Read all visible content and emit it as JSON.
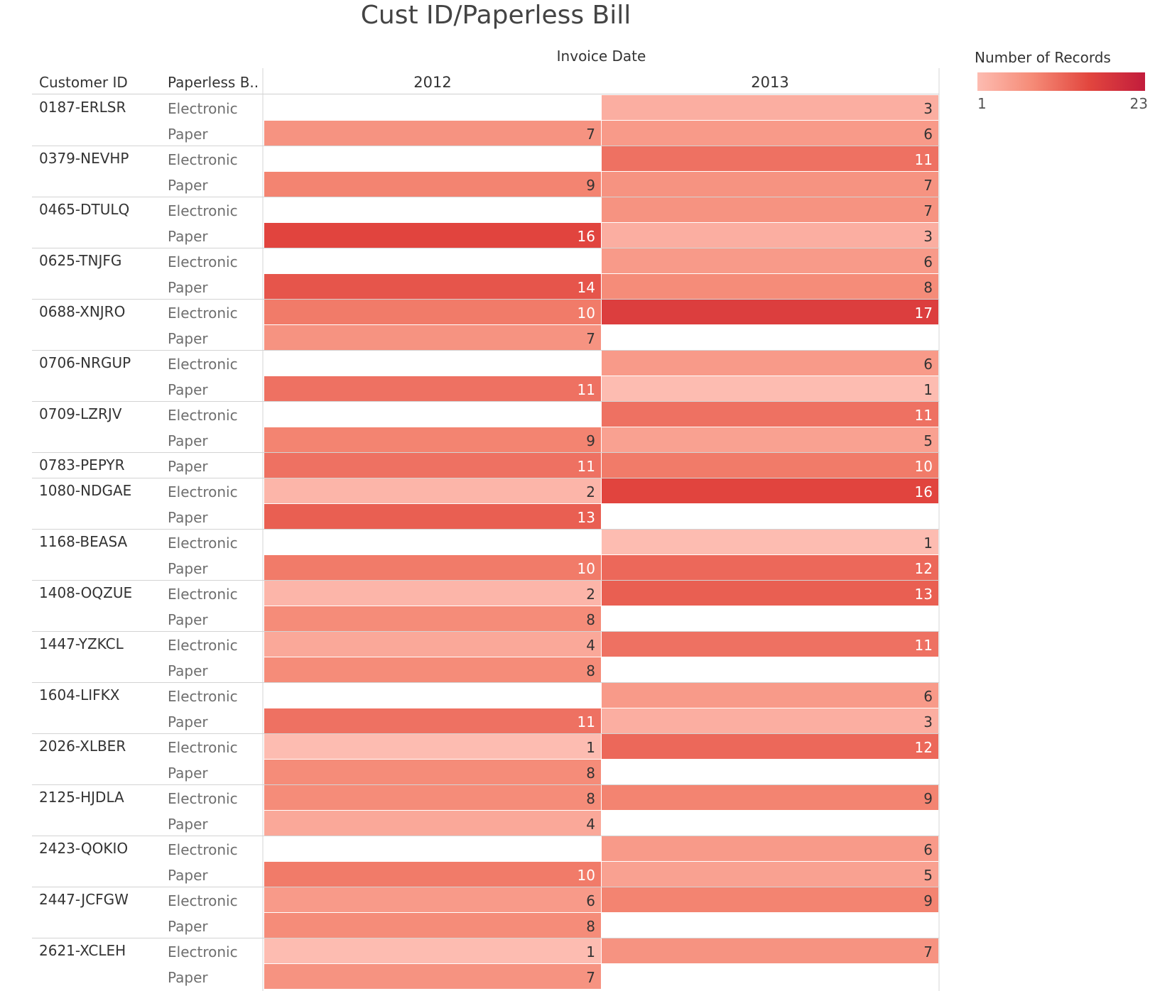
{
  "title": "Cust ID/Paperless Bill",
  "header": {
    "column_group_label": "Invoice Date",
    "row_header_1": "Customer ID",
    "row_header_2": "Paperless B.."
  },
  "legend": {
    "title": "Number of Records",
    "min_label": "1",
    "max_label": "23",
    "colors": [
      "#fdbcb1",
      "#f58a76",
      "#e2463e",
      "#c21c3c"
    ]
  },
  "chart_data": {
    "type": "heatmap",
    "title": "Cust ID/Paperless Bill",
    "column_group": "Invoice Date",
    "columns": [
      "2012",
      "2013"
    ],
    "row_dimensions": [
      "Customer ID",
      "Paperless B.."
    ],
    "color_measure": "Number of Records",
    "color_range": [
      1,
      23
    ],
    "groups": [
      {
        "customer": "0187-ERLSR",
        "rows": [
          {
            "bill": "Electronic",
            "values": [
              null,
              3
            ]
          },
          {
            "bill": "Paper",
            "values": [
              7,
              6
            ]
          }
        ]
      },
      {
        "customer": "0379-NEVHP",
        "rows": [
          {
            "bill": "Electronic",
            "values": [
              null,
              11
            ]
          },
          {
            "bill": "Paper",
            "values": [
              9,
              7
            ]
          }
        ]
      },
      {
        "customer": "0465-DTULQ",
        "rows": [
          {
            "bill": "Electronic",
            "values": [
              null,
              7
            ]
          },
          {
            "bill": "Paper",
            "values": [
              16,
              3
            ]
          }
        ]
      },
      {
        "customer": "0625-TNJFG",
        "rows": [
          {
            "bill": "Electronic",
            "values": [
              null,
              6
            ]
          },
          {
            "bill": "Paper",
            "values": [
              14,
              8
            ]
          }
        ]
      },
      {
        "customer": "0688-XNJRO",
        "rows": [
          {
            "bill": "Electronic",
            "values": [
              10,
              17
            ]
          },
          {
            "bill": "Paper",
            "values": [
              7,
              null
            ]
          }
        ]
      },
      {
        "customer": "0706-NRGUP",
        "rows": [
          {
            "bill": "Electronic",
            "values": [
              null,
              6
            ]
          },
          {
            "bill": "Paper",
            "values": [
              11,
              1
            ]
          }
        ]
      },
      {
        "customer": "0709-LZRJV",
        "rows": [
          {
            "bill": "Electronic",
            "values": [
              null,
              11
            ]
          },
          {
            "bill": "Paper",
            "values": [
              9,
              5
            ]
          }
        ]
      },
      {
        "customer": "0783-PEPYR",
        "rows": [
          {
            "bill": "Paper",
            "values": [
              11,
              10
            ]
          }
        ]
      },
      {
        "customer": "1080-NDGAE",
        "rows": [
          {
            "bill": "Electronic",
            "values": [
              2,
              16
            ]
          },
          {
            "bill": "Paper",
            "values": [
              13,
              null
            ]
          }
        ]
      },
      {
        "customer": "1168-BEASA",
        "rows": [
          {
            "bill": "Electronic",
            "values": [
              null,
              1
            ]
          },
          {
            "bill": "Paper",
            "values": [
              10,
              12
            ]
          }
        ]
      },
      {
        "customer": "1408-OQZUE",
        "rows": [
          {
            "bill": "Electronic",
            "values": [
              2,
              13
            ]
          },
          {
            "bill": "Paper",
            "values": [
              8,
              null
            ]
          }
        ]
      },
      {
        "customer": "1447-YZKCL",
        "rows": [
          {
            "bill": "Electronic",
            "values": [
              4,
              11
            ]
          },
          {
            "bill": "Paper",
            "values": [
              8,
              null
            ]
          }
        ]
      },
      {
        "customer": "1604-LIFKX",
        "rows": [
          {
            "bill": "Electronic",
            "values": [
              null,
              6
            ]
          },
          {
            "bill": "Paper",
            "values": [
              11,
              3
            ]
          }
        ]
      },
      {
        "customer": "2026-XLBER",
        "rows": [
          {
            "bill": "Electronic",
            "values": [
              1,
              12
            ]
          },
          {
            "bill": "Paper",
            "values": [
              8,
              null
            ]
          }
        ]
      },
      {
        "customer": "2125-HJDLA",
        "rows": [
          {
            "bill": "Electronic",
            "values": [
              8,
              9
            ]
          },
          {
            "bill": "Paper",
            "values": [
              4,
              null
            ]
          }
        ]
      },
      {
        "customer": "2423-QOKIO",
        "rows": [
          {
            "bill": "Electronic",
            "values": [
              null,
              6
            ]
          },
          {
            "bill": "Paper",
            "values": [
              10,
              5
            ]
          }
        ]
      },
      {
        "customer": "2447-JCFGW",
        "rows": [
          {
            "bill": "Electronic",
            "values": [
              6,
              9
            ]
          },
          {
            "bill": "Paper",
            "values": [
              8,
              null
            ]
          }
        ]
      },
      {
        "customer": "2621-XCLEH",
        "rows": [
          {
            "bill": "Electronic",
            "values": [
              1,
              7
            ]
          },
          {
            "bill": "Paper",
            "values": [
              7,
              null
            ]
          }
        ]
      }
    ]
  }
}
